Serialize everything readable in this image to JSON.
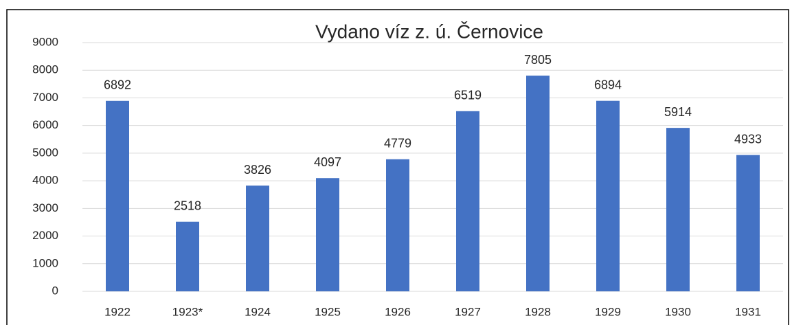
{
  "chart_data": {
    "type": "bar",
    "title": "Vydano víz z. ú. Černovice",
    "categories": [
      "1922",
      "1923*",
      "1924",
      "1925",
      "1926",
      "1927",
      "1928",
      "1929",
      "1930",
      "1931"
    ],
    "values": [
      6892,
      2518,
      3826,
      4097,
      4779,
      6519,
      7805,
      6894,
      5914,
      4933
    ],
    "color": "#4472c4",
    "ylim": [
      0,
      9000
    ],
    "yticks": [
      0,
      1000,
      2000,
      3000,
      4000,
      5000,
      6000,
      7000,
      8000,
      9000
    ],
    "grid": true
  }
}
